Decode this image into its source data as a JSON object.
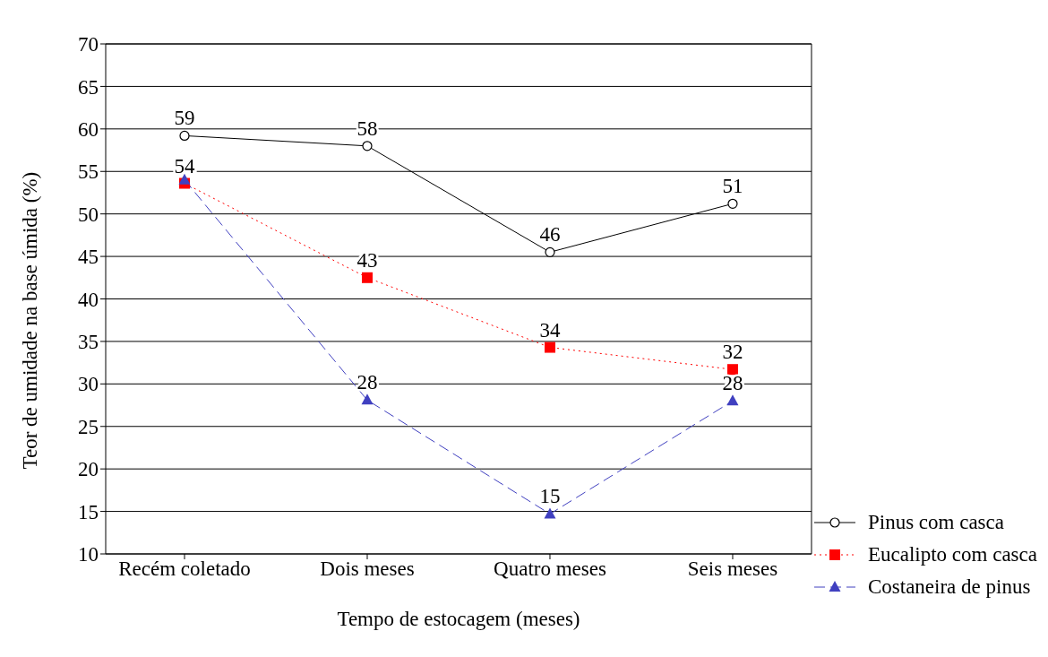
{
  "chart_data": {
    "type": "line",
    "xlabel": "Tempo de estocagem (meses)",
    "ylabel": "Teor de umidade na base úmida (%)",
    "categories": [
      "Recém coletado",
      "Dois meses",
      "Quatro meses",
      "Seis meses"
    ],
    "series": [
      {
        "name": "Pinus com casca",
        "color": "#000000",
        "marker": "circle",
        "line_style": "solid",
        "values": [
          59.2,
          58.0,
          45.5,
          51.2
        ],
        "value_labels": [
          "59",
          "58",
          "46",
          "51"
        ]
      },
      {
        "name": "Eucalipto com casca",
        "color": "#ff0000",
        "marker": "square",
        "line_style": "dotted",
        "values": [
          53.6,
          42.5,
          34.3,
          31.7
        ],
        "value_labels": [
          "54",
          "43",
          "34",
          "32"
        ]
      },
      {
        "name": "Costaneira de pinus",
        "color": "#4040c0",
        "marker": "triangle",
        "line_style": "dashed",
        "values": [
          54.0,
          28.1,
          14.7,
          28.0
        ],
        "value_labels": [
          null,
          "28",
          "15",
          "28"
        ]
      }
    ],
    "ylim": [
      10,
      70
    ],
    "yticks": [
      10,
      15,
      20,
      25,
      30,
      35,
      40,
      45,
      50,
      55,
      60,
      65,
      70
    ],
    "grid": "y",
    "legend": "bottom right"
  }
}
